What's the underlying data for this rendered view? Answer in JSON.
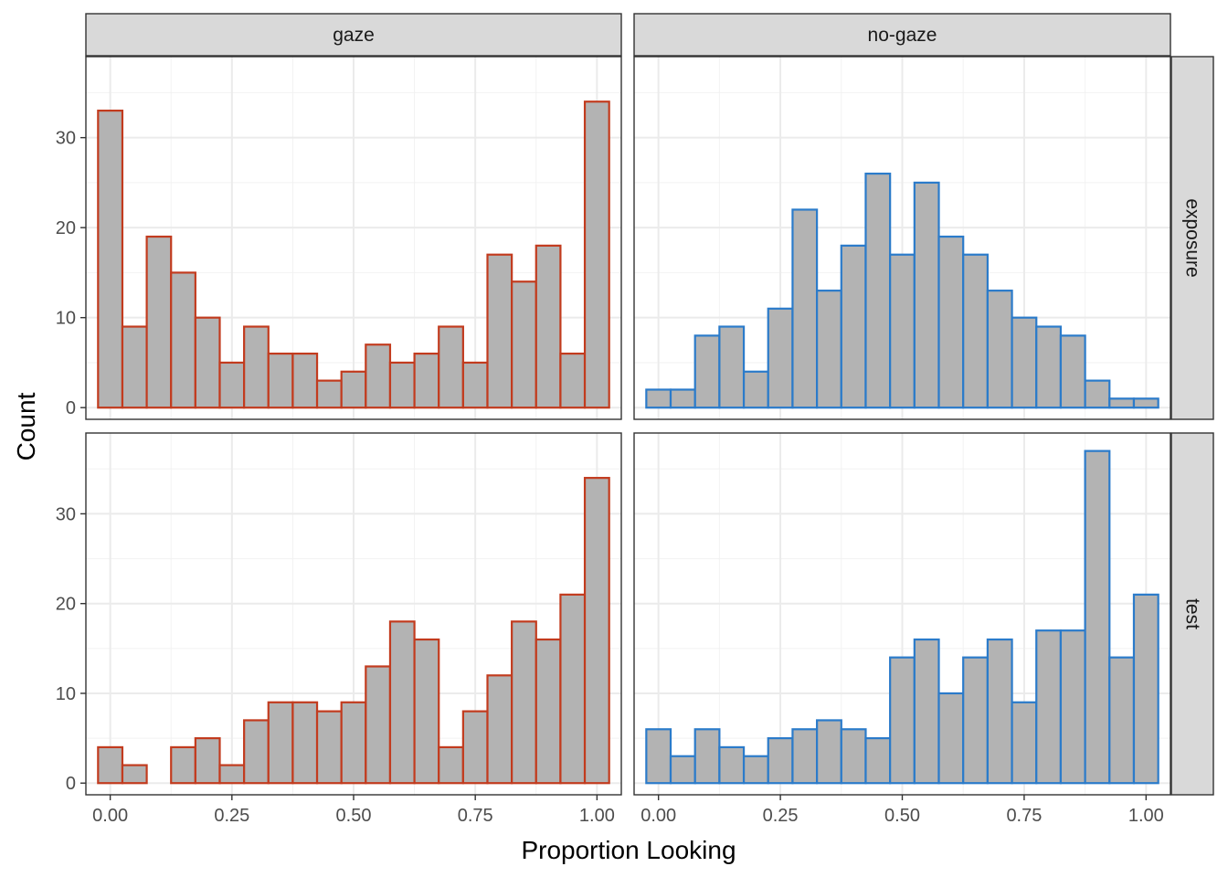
{
  "chart_data": {
    "type": "bar",
    "chart_kind": "faceted histogram",
    "xlabel": "Proportion Looking",
    "ylabel": "Count",
    "x_ticks": [
      "0.00",
      "0.25",
      "0.50",
      "0.75",
      "1.00"
    ],
    "y_ticks": [
      "0",
      "10",
      "20",
      "30"
    ],
    "x_range": [
      -0.05,
      1.05
    ],
    "y_range": [
      -1.3,
      39
    ],
    "bin_width": 0.05,
    "bin_centers": [
      0.0,
      0.05,
      0.1,
      0.15,
      0.2,
      0.25,
      0.3,
      0.35,
      0.4,
      0.45,
      0.5,
      0.55,
      0.6,
      0.65,
      0.7,
      0.75,
      0.8,
      0.85,
      0.9,
      0.95,
      1.0
    ],
    "columns": [
      "gaze",
      "no-gaze"
    ],
    "rows": [
      "exposure",
      "test"
    ],
    "grid": true,
    "bar_fill": "#B3B3B3",
    "facet_colors": {
      "gaze": "#C23B1E",
      "no-gaze": "#2B7BCA"
    },
    "panels": [
      {
        "column": "gaze",
        "row": "exposure",
        "values": [
          33,
          9,
          19,
          15,
          10,
          5,
          9,
          6,
          6,
          3,
          4,
          7,
          5,
          6,
          9,
          5,
          17,
          14,
          18,
          6,
          34
        ]
      },
      {
        "column": "no-gaze",
        "row": "exposure",
        "values": [
          2,
          2,
          8,
          9,
          4,
          11,
          22,
          13,
          18,
          26,
          17,
          25,
          19,
          17,
          13,
          10,
          9,
          8,
          3,
          1,
          1
        ]
      },
      {
        "column": "gaze",
        "row": "test",
        "values": [
          4,
          2,
          0,
          4,
          5,
          2,
          7,
          9,
          9,
          8,
          9,
          13,
          18,
          16,
          4,
          8,
          12,
          18,
          16,
          21,
          34
        ]
      },
      {
        "column": "no-gaze",
        "row": "test",
        "values": [
          6,
          3,
          6,
          4,
          3,
          5,
          6,
          7,
          6,
          5,
          14,
          16,
          10,
          14,
          16,
          9,
          17,
          17,
          37,
          14,
          21
        ]
      }
    ]
  }
}
